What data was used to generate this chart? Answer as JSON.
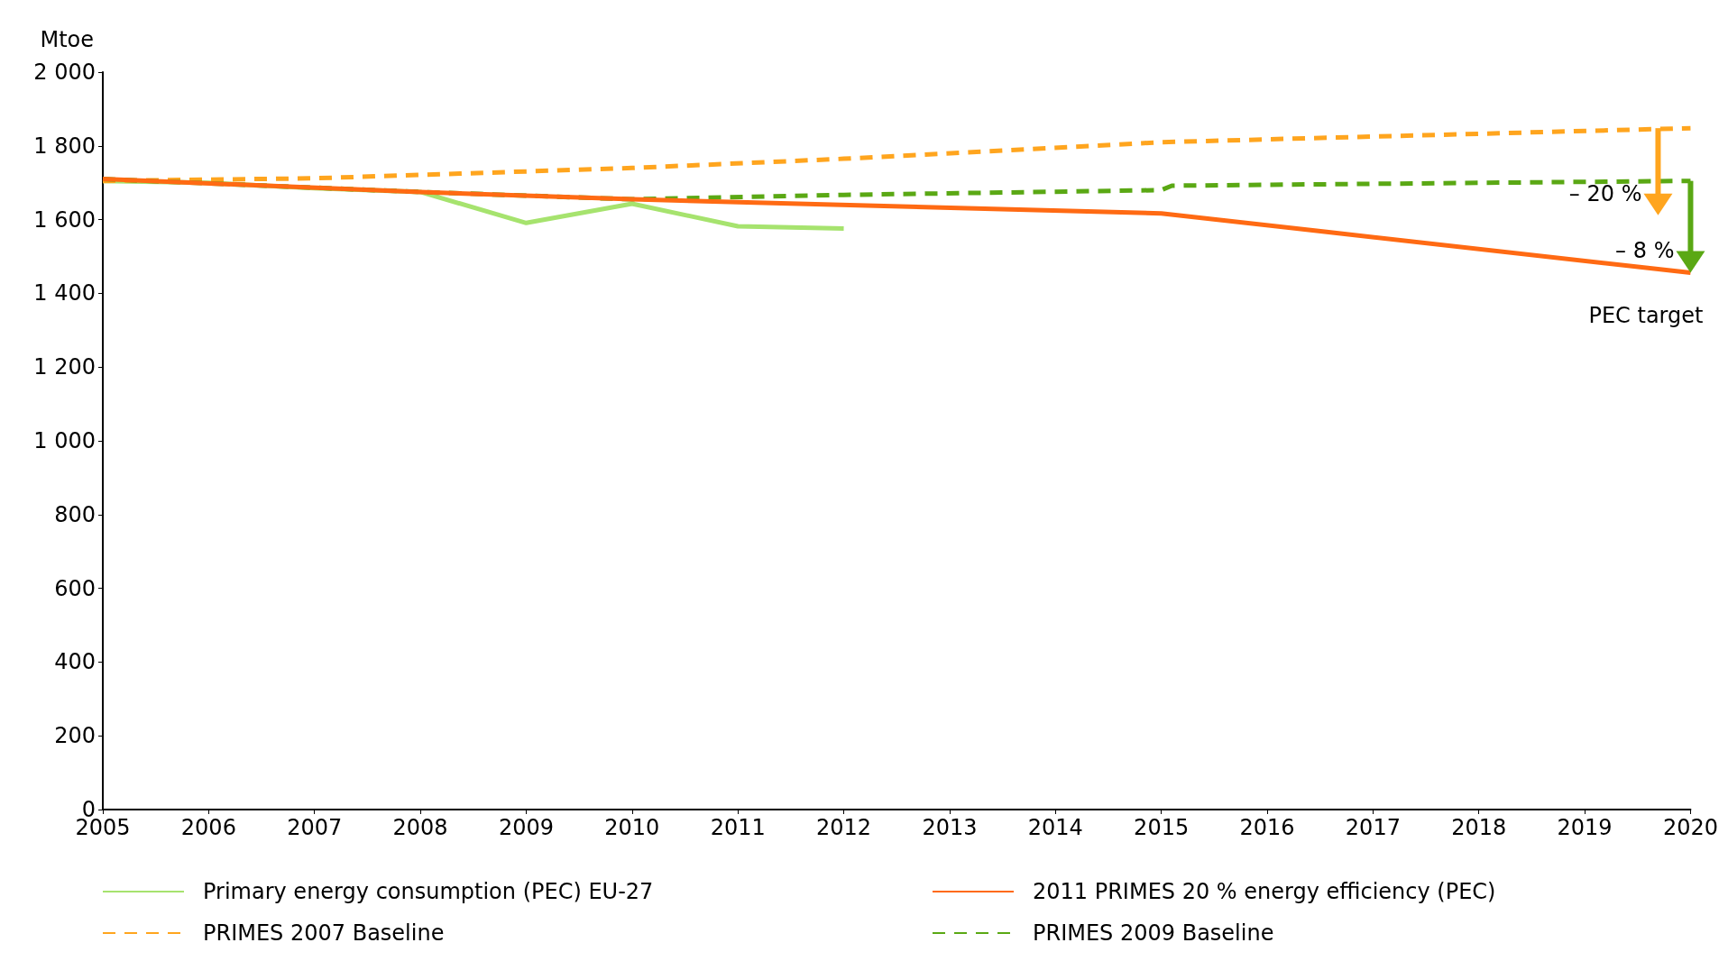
{
  "chart_data": {
    "type": "line",
    "ylabel": "Mtoe",
    "xlim": [
      2005,
      2020
    ],
    "ylim": [
      0,
      2000
    ],
    "xticks": [
      2005,
      2006,
      2007,
      2008,
      2009,
      2010,
      2011,
      2012,
      2013,
      2014,
      2015,
      2016,
      2017,
      2018,
      2019,
      2020
    ],
    "yticks": [
      0,
      200,
      400,
      600,
      800,
      {
        "value": 1000,
        "label": "1 000"
      },
      {
        "value": 1200,
        "label": "1 200"
      },
      {
        "value": 1400,
        "label": "1 400"
      },
      {
        "value": 1600,
        "label": "1 600"
      },
      {
        "value": 1800,
        "label": "1 800"
      },
      {
        "value": 2000,
        "label": "2 000"
      }
    ],
    "grid": false,
    "legend": "bottom",
    "marker": "none",
    "series": [
      {
        "name": "Primary energy consumption (PEC) EU-27",
        "color": "#a6e36e",
        "line_style": "solid",
        "x": [
          2005,
          2006,
          2007,
          2008,
          2009,
          2010,
          2011,
          2012
        ],
        "values": [
          1705,
          1700,
          1685,
          1675,
          1591,
          1643,
          1582,
          1576
        ]
      },
      {
        "name": "2011 PRIMES 20 % energy efficiency (PEC)",
        "color": "#ff6a13",
        "line_style": "solid",
        "x": [
          2005,
          2008,
          2010,
          2015,
          2020
        ],
        "values": [
          1710,
          1675,
          1655,
          1617,
          1456
        ]
      },
      {
        "name": "PRIMES 2007 Baseline",
        "color": "#ffa51e",
        "line_style": "dashed",
        "x": [
          2005,
          2007,
          2010,
          2012,
          2015,
          2020
        ],
        "values": [
          1705,
          1712,
          1740,
          1765,
          1810,
          1848
        ]
      },
      {
        "name": "PRIMES 2009 Baseline",
        "color": "#5aa814",
        "line_style": "dashed",
        "x": [
          2005,
          2008,
          2010,
          2012,
          2015,
          2015.1,
          2020
        ],
        "values": [
          1710,
          1675,
          1655,
          1667,
          1680,
          1692,
          1705
        ]
      }
    ],
    "annotations": [
      "– 20 %",
      "– 8 %",
      {
        "text": "PEC target",
        "x": 2020,
        "y": 1456
      }
    ]
  }
}
